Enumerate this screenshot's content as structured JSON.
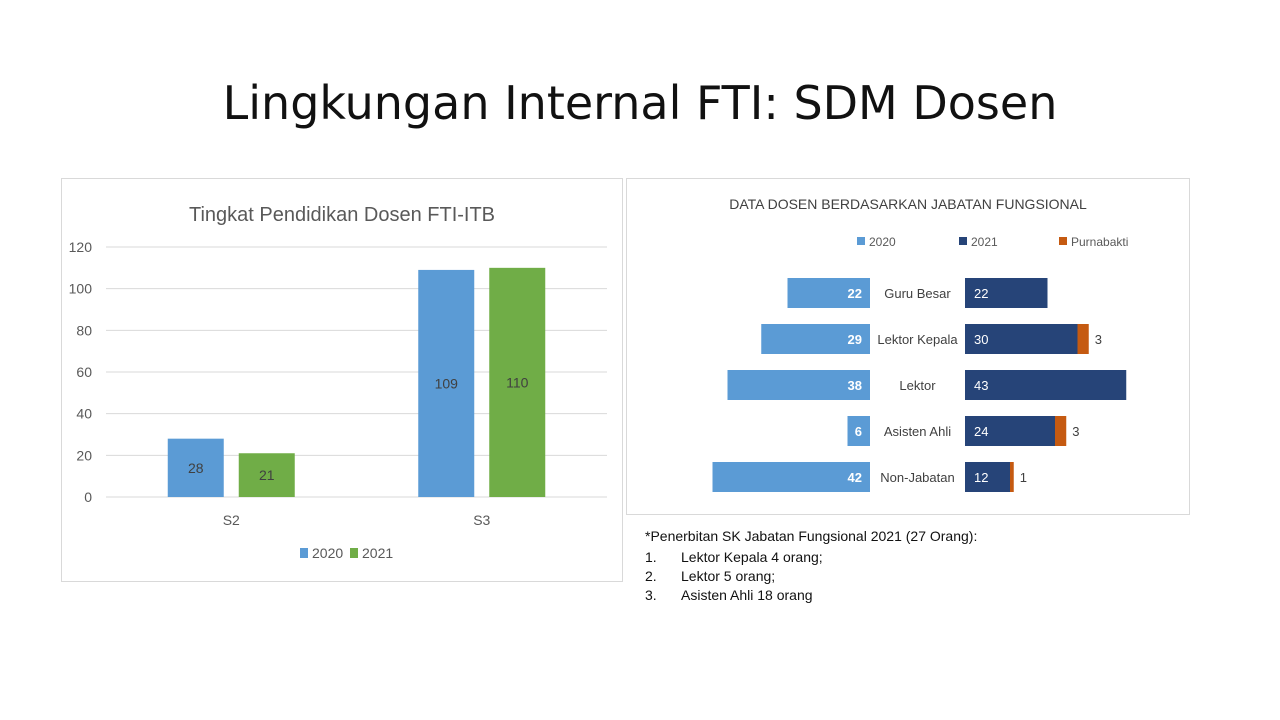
{
  "slide": {
    "title": "Lingkungan Internal FTI: SDM Dosen"
  },
  "colors": {
    "blue2020": "#5b9bd5",
    "green2021": "#70ad47",
    "navy2021": "#264478",
    "orange": "#c55a11"
  },
  "chart_data": [
    {
      "type": "bar",
      "title": "Tingkat Pendidikan Dosen FTI-ITB",
      "categories": [
        "S2",
        "S3"
      ],
      "series": [
        {
          "name": "2020",
          "values": [
            28,
            109
          ]
        },
        {
          "name": "2021",
          "values": [
            21,
            110
          ]
        }
      ],
      "ylim": [
        0,
        120
      ],
      "yticks": [
        0,
        20,
        40,
        60,
        80,
        100,
        120
      ],
      "grid": true,
      "legend": "bottom"
    },
    {
      "type": "bar",
      "orientation": "horizontal-butterfly",
      "title": "DATA DOSEN BERDASARKAN JABATAN FUNGSIONAL",
      "categories": [
        "Guru Besar",
        "Lektor Kepala",
        "Lektor",
        "Asisten Ahli",
        "Non-Jabatan"
      ],
      "series": [
        {
          "name": "2020",
          "values": [
            22,
            29,
            38,
            6,
            42
          ]
        },
        {
          "name": "2021",
          "values": [
            22,
            30,
            43,
            24,
            12
          ]
        },
        {
          "name": "Purnabakti",
          "values": [
            0,
            3,
            0,
            3,
            1
          ]
        }
      ],
      "legend": "top"
    }
  ],
  "note": {
    "heading": "*Penerbitan SK Jabatan Fungsional 2021 (27 Orang):",
    "items": [
      {
        "num": "1.",
        "text": "Lektor Kepala 4 orang;"
      },
      {
        "num": "2.",
        "text": "Lektor 5 orang;"
      },
      {
        "num": "3.",
        "text": "Asisten Ahli 18 orang"
      }
    ]
  }
}
